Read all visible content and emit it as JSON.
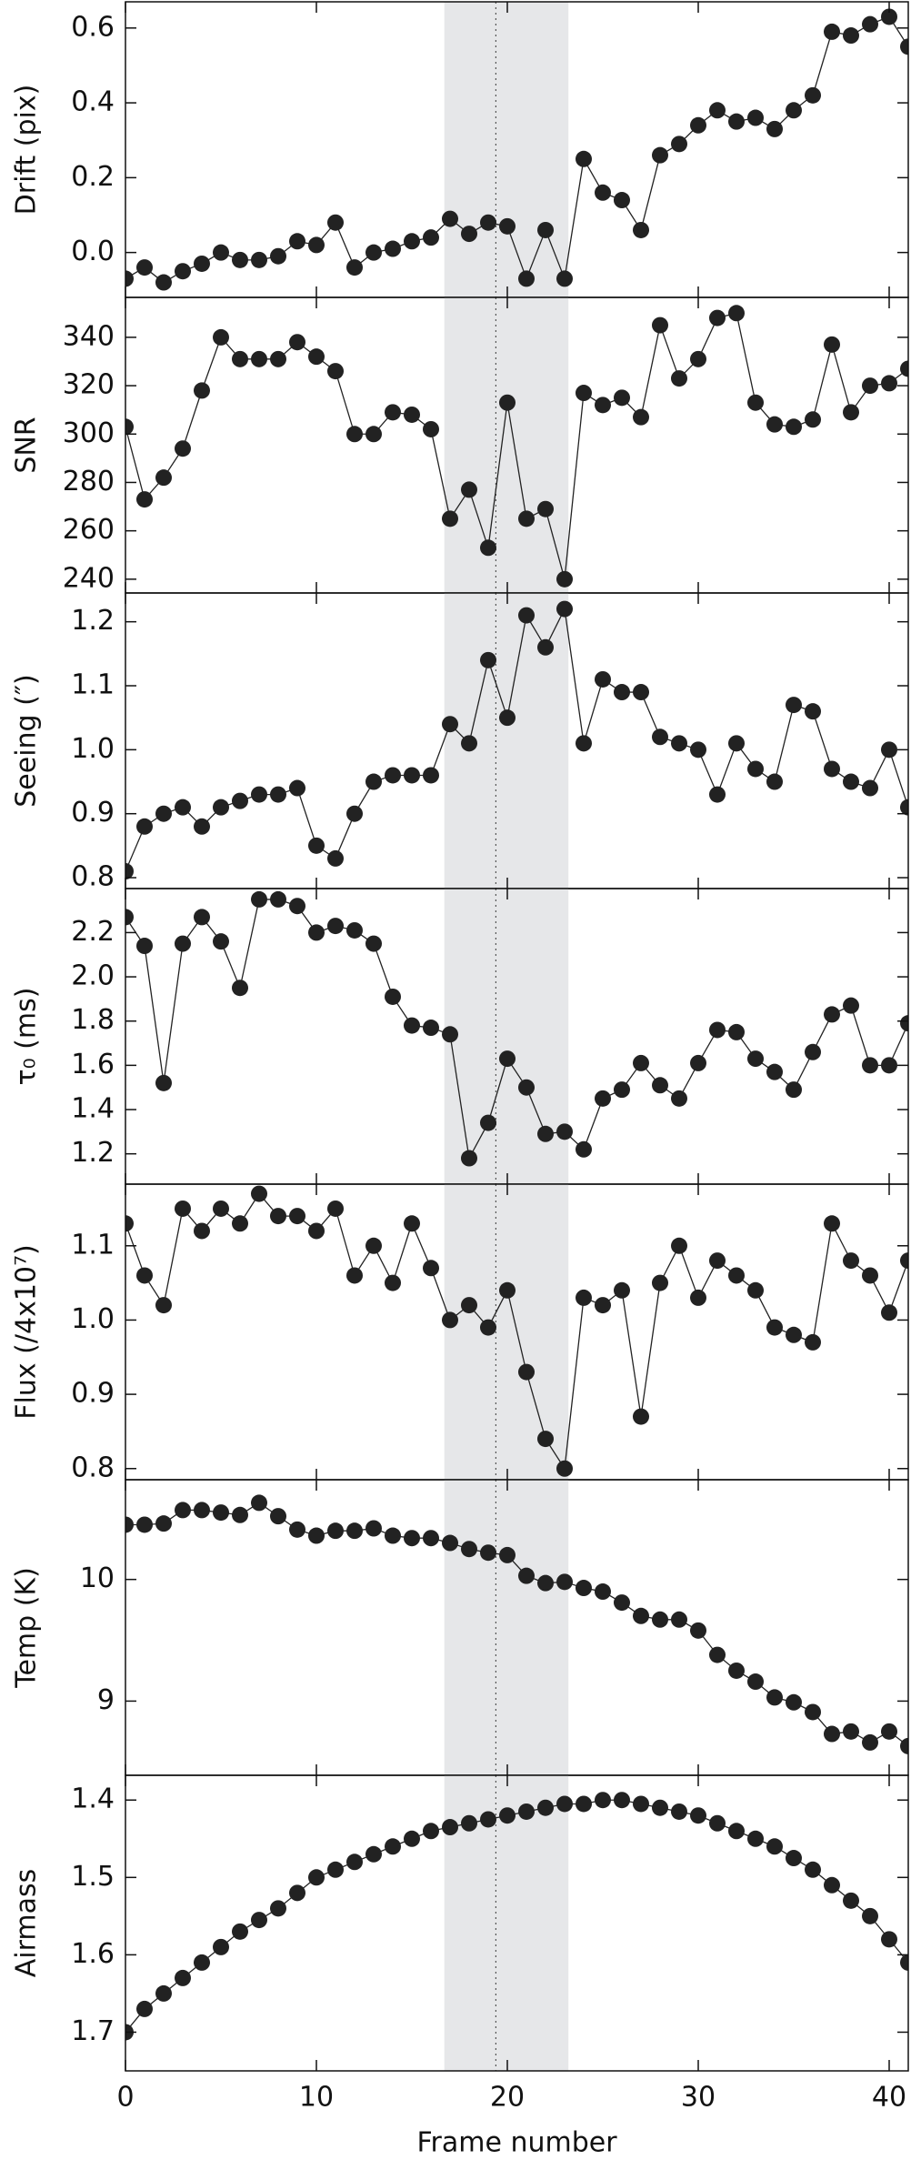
{
  "chart_data": [
    {
      "type": "line",
      "ylabel": "Drift (pix)",
      "color": "#222222",
      "shade_color": "#e6e7e9",
      "shaded_x": [
        16.7,
        23.2
      ],
      "vline_x": 19.4,
      "x": [
        0,
        1,
        2,
        3,
        4,
        5,
        6,
        7,
        8,
        9,
        10,
        11,
        12,
        13,
        14,
        15,
        16,
        17,
        18,
        19,
        20,
        21,
        22,
        23,
        24,
        25,
        26,
        27,
        28,
        29,
        30,
        31,
        32,
        33,
        34,
        35,
        36,
        37,
        38,
        39,
        40,
        41
      ],
      "values": [
        -0.07,
        -0.04,
        -0.08,
        -0.05,
        -0.03,
        0.0,
        -0.02,
        -0.02,
        -0.01,
        0.03,
        0.02,
        0.08,
        -0.04,
        0.0,
        0.01,
        0.03,
        0.04,
        0.09,
        0.05,
        0.08,
        0.07,
        -0.07,
        0.06,
        -0.07,
        0.25,
        0.16,
        0.14,
        0.06,
        0.26,
        0.29,
        0.34,
        0.38,
        0.35,
        0.36,
        0.33,
        0.38,
        0.42,
        0.59,
        0.58,
        0.61,
        0.63,
        0.55
      ],
      "xlim": [
        0,
        41
      ],
      "xticks": [
        0,
        10,
        20,
        30,
        40
      ],
      "ylim": [
        -0.12,
        0.67
      ],
      "yticks": [
        {
          "value": 0,
          "label": "0.0"
        },
        0.2,
        0.4,
        0.6
      ]
    },
    {
      "type": "line",
      "ylabel": "SNR",
      "color": "#222222",
      "shade_color": "#e6e7e9",
      "shaded_x": [
        16.7,
        23.2
      ],
      "vline_x": 19.4,
      "x": [
        0,
        1,
        2,
        3,
        4,
        5,
        6,
        7,
        8,
        9,
        10,
        11,
        12,
        13,
        14,
        15,
        16,
        17,
        18,
        19,
        20,
        21,
        22,
        23,
        24,
        25,
        26,
        27,
        28,
        29,
        30,
        31,
        32,
        33,
        34,
        35,
        36,
        37,
        38,
        39,
        40,
        41
      ],
      "values": [
        303,
        273,
        282,
        294,
        318,
        340,
        331,
        331,
        331,
        338,
        332,
        326,
        300,
        300,
        309,
        308,
        302,
        265,
        277,
        253,
        313,
        265,
        269,
        240,
        317,
        312,
        315,
        307,
        345,
        323,
        331,
        348,
        350,
        313,
        304,
        303,
        306,
        337,
        309,
        320,
        321,
        327
      ],
      "xlim": [
        0,
        41
      ],
      "xticks": [
        0,
        10,
        20,
        30,
        40
      ],
      "ylim": [
        234.3,
        356.5
      ],
      "yticks": [
        240,
        260,
        280,
        300,
        320,
        340
      ]
    },
    {
      "type": "line",
      "ylabel": "Seeing (″)",
      "color": "#222222",
      "shade_color": "#e6e7e9",
      "shaded_x": [
        16.7,
        23.2
      ],
      "vline_x": 19.4,
      "x": [
        0,
        1,
        2,
        3,
        4,
        5,
        6,
        7,
        8,
        9,
        10,
        11,
        12,
        13,
        14,
        15,
        16,
        17,
        18,
        19,
        20,
        21,
        22,
        23,
        24,
        25,
        26,
        27,
        28,
        29,
        30,
        31,
        32,
        33,
        34,
        35,
        36,
        37,
        38,
        39,
        40,
        41
      ],
      "values": [
        0.81,
        0.88,
        0.9,
        0.91,
        0.88,
        0.91,
        0.92,
        0.93,
        0.93,
        0.94,
        0.85,
        0.83,
        0.9,
        0.95,
        0.96,
        0.96,
        0.96,
        1.04,
        1.01,
        1.14,
        1.05,
        1.21,
        1.16,
        1.22,
        1.01,
        1.11,
        1.09,
        1.09,
        1.02,
        1.01,
        1.0,
        0.93,
        1.01,
        0.97,
        0.95,
        1.07,
        1.06,
        0.97,
        0.95,
        0.94,
        1.0,
        0.91
      ],
      "xlim": [
        0,
        41
      ],
      "xticks": [
        0,
        10,
        20,
        30,
        40
      ],
      "ylim": [
        0.783,
        1.245
      ],
      "yticks": [
        0.8,
        0.9,
        {
          "value": 1,
          "label": "1.0"
        },
        1.1,
        1.2
      ]
    },
    {
      "type": "line",
      "ylabel": "τ₀ (ms)",
      "color": "#222222",
      "shade_color": "#e6e7e9",
      "shaded_x": [
        16.7,
        23.2
      ],
      "vline_x": 19.4,
      "x": [
        0,
        1,
        2,
        3,
        4,
        5,
        6,
        7,
        8,
        9,
        10,
        11,
        12,
        13,
        14,
        15,
        16,
        17,
        18,
        19,
        20,
        21,
        22,
        23,
        24,
        25,
        26,
        27,
        28,
        29,
        30,
        31,
        32,
        33,
        34,
        35,
        36,
        37,
        38,
        39,
        40,
        41
      ],
      "values": [
        2.27,
        2.14,
        1.52,
        2.15,
        2.27,
        2.16,
        1.95,
        2.35,
        2.35,
        2.32,
        2.2,
        2.23,
        2.21,
        2.15,
        1.91,
        1.78,
        1.77,
        1.74,
        1.18,
        1.34,
        1.63,
        1.5,
        1.29,
        1.3,
        1.22,
        1.45,
        1.49,
        1.61,
        1.51,
        1.45,
        1.61,
        1.76,
        1.75,
        1.63,
        1.57,
        1.49,
        1.66,
        1.83,
        1.87,
        1.6,
        1.6,
        1.79
      ],
      "xlim": [
        0,
        41
      ],
      "xticks": [
        0,
        10,
        20,
        30,
        40
      ],
      "ylim": [
        1.063,
        2.399
      ],
      "yticks": [
        1.2,
        1.4,
        1.6,
        1.8,
        {
          "value": 2,
          "label": "2.0"
        },
        2.2
      ]
    },
    {
      "type": "line",
      "ylabel": "Flux (/4x10⁷)",
      "color": "#222222",
      "shade_color": "#e6e7e9",
      "shaded_x": [
        16.7,
        23.2
      ],
      "vline_x": 19.4,
      "x": [
        0,
        1,
        2,
        3,
        4,
        5,
        6,
        7,
        8,
        9,
        10,
        11,
        12,
        13,
        14,
        15,
        16,
        17,
        18,
        19,
        20,
        21,
        22,
        23,
        24,
        25,
        26,
        27,
        28,
        29,
        30,
        31,
        32,
        33,
        34,
        35,
        36,
        37,
        38,
        39,
        40,
        41
      ],
      "values": [
        1.13,
        1.06,
        1.02,
        1.15,
        1.12,
        1.15,
        1.13,
        1.17,
        1.14,
        1.14,
        1.12,
        1.15,
        1.06,
        1.1,
        1.05,
        1.13,
        1.07,
        1.0,
        1.02,
        0.99,
        1.04,
        0.93,
        0.84,
        0.8,
        1.03,
        1.02,
        1.04,
        0.87,
        1.05,
        1.1,
        1.03,
        1.08,
        1.06,
        1.04,
        0.99,
        0.98,
        0.97,
        1.13,
        1.08,
        1.06,
        1.01,
        1.08
      ],
      "xlim": [
        0,
        41
      ],
      "xticks": [
        0,
        10,
        20,
        30,
        40
      ],
      "ylim": [
        0.785,
        1.183
      ],
      "yticks": [
        0.8,
        0.9,
        {
          "value": 1,
          "label": "1.0"
        },
        1.1
      ]
    },
    {
      "type": "line",
      "ylabel": "Temp (K)",
      "color": "#222222",
      "shade_color": "#e6e7e9",
      "shaded_x": [
        16.7,
        23.2
      ],
      "vline_x": 19.4,
      "x": [
        0,
        1,
        2,
        3,
        4,
        5,
        6,
        7,
        8,
        9,
        10,
        11,
        12,
        13,
        14,
        15,
        16,
        17,
        18,
        19,
        20,
        21,
        22,
        23,
        24,
        25,
        26,
        27,
        28,
        29,
        30,
        31,
        32,
        33,
        34,
        35,
        36,
        37,
        38,
        39,
        40,
        41
      ],
      "values": [
        10.45,
        10.45,
        10.46,
        10.57,
        10.57,
        10.55,
        10.53,
        10.63,
        10.52,
        10.41,
        10.36,
        10.4,
        10.4,
        10.42,
        10.36,
        10.34,
        10.34,
        10.3,
        10.25,
        10.22,
        10.2,
        10.03,
        9.97,
        9.98,
        9.93,
        9.9,
        9.81,
        9.7,
        9.67,
        9.67,
        9.58,
        9.38,
        9.25,
        9.16,
        9.03,
        8.99,
        8.91,
        8.73,
        8.75,
        8.66,
        8.75,
        8.63
      ],
      "xlim": [
        0,
        41
      ],
      "xticks": [
        0,
        10,
        20,
        30,
        40
      ],
      "ylim": [
        8.39,
        10.82
      ],
      "yticks": [
        9,
        10
      ]
    },
    {
      "type": "line",
      "ylabel": "Airmass",
      "xlabel": "Frame number",
      "xtick_labels": true,
      "color": "#222222",
      "shade_color": "#e6e7e9",
      "shaded_x": [
        16.7,
        23.2
      ],
      "vline_x": 19.4,
      "x": [
        0,
        1,
        2,
        3,
        4,
        5,
        6,
        7,
        8,
        9,
        10,
        11,
        12,
        13,
        14,
        15,
        16,
        17,
        18,
        19,
        20,
        21,
        22,
        23,
        24,
        25,
        26,
        27,
        28,
        29,
        30,
        31,
        32,
        33,
        34,
        35,
        36,
        37,
        38,
        39,
        40,
        41
      ],
      "values": [
        1.7,
        1.67,
        1.65,
        1.63,
        1.61,
        1.59,
        1.57,
        1.555,
        1.54,
        1.52,
        1.5,
        1.49,
        1.48,
        1.47,
        1.46,
        1.45,
        1.44,
        1.435,
        1.43,
        1.425,
        1.42,
        1.415,
        1.41,
        1.405,
        1.405,
        1.4,
        1.4,
        1.405,
        1.41,
        1.415,
        1.42,
        1.43,
        1.44,
        1.45,
        1.46,
        1.475,
        1.49,
        1.51,
        1.53,
        1.55,
        1.58,
        1.61
      ],
      "xlim": [
        0,
        41
      ],
      "xticks": [
        0,
        10,
        20,
        30,
        40
      ],
      "ylim": [
        1.75,
        1.368
      ],
      "yticks": [
        1.4,
        1.5,
        1.6,
        1.7
      ]
    }
  ]
}
